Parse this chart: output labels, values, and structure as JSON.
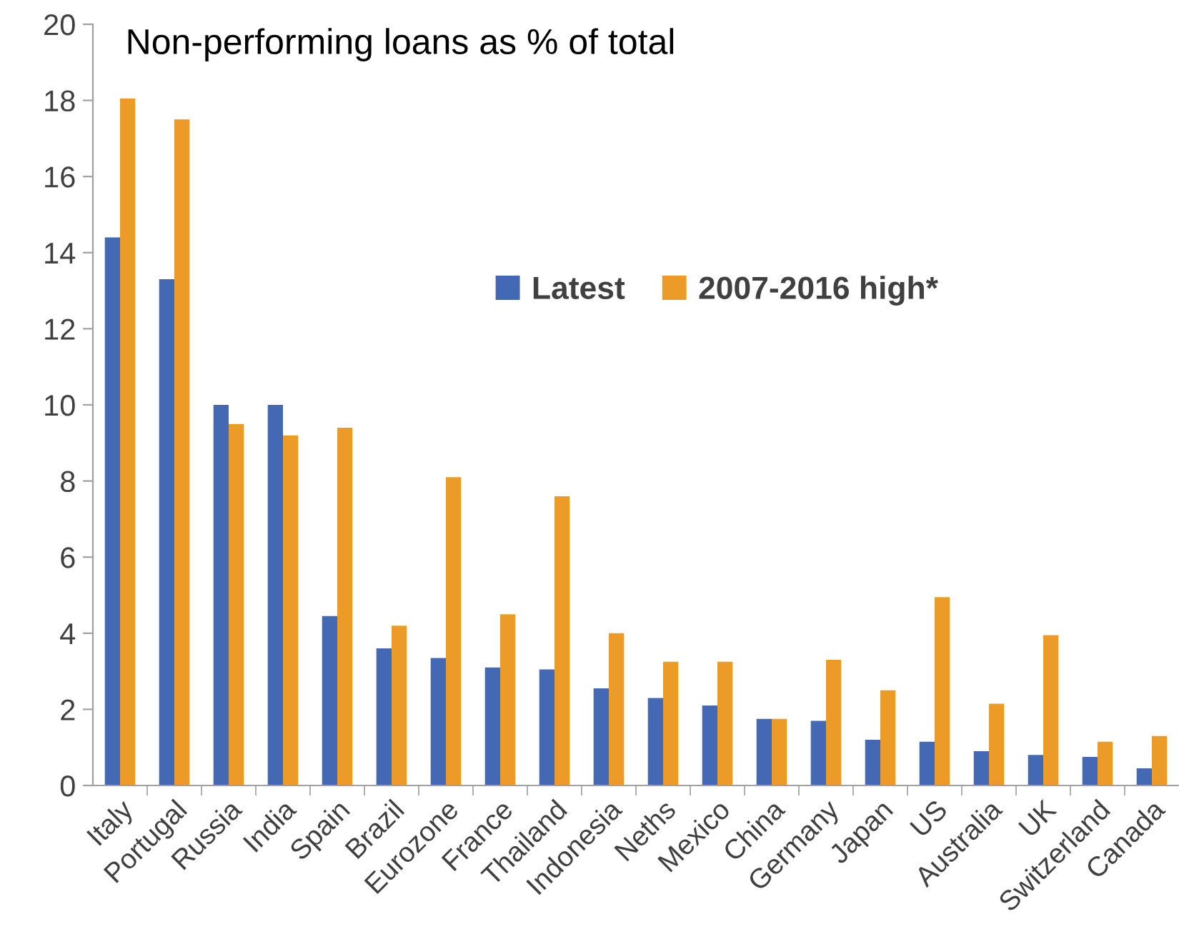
{
  "chart_data": {
    "type": "bar",
    "title": "Non-performing loans as % of total",
    "categories": [
      "Italy",
      "Portugal",
      "Russia",
      "India",
      "Spain",
      "Brazil",
      "Eurozone",
      "France",
      "Thailand",
      "Indonesia",
      "Neths",
      "Mexico",
      "China",
      "Germany",
      "Japan",
      "US",
      "Australia",
      "UK",
      "Switzerland",
      "Canada"
    ],
    "series": [
      {
        "name": "Latest",
        "color": "#4469b4",
        "values": [
          14.4,
          13.3,
          10.0,
          10.0,
          4.45,
          3.6,
          3.35,
          3.1,
          3.05,
          2.55,
          2.3,
          2.1,
          1.75,
          1.7,
          1.2,
          1.15,
          0.9,
          0.8,
          0.75,
          0.45
        ]
      },
      {
        "name": "2007-2016 high*",
        "color": "#ed9b28",
        "values": [
          18.05,
          17.5,
          9.5,
          9.2,
          9.4,
          4.2,
          8.1,
          4.5,
          7.6,
          4.0,
          3.25,
          3.25,
          1.75,
          3.3,
          2.5,
          4.95,
          2.15,
          3.95,
          1.15,
          1.3
        ]
      }
    ],
    "ylim": [
      0,
      20
    ],
    "yticks": [
      0,
      2,
      4,
      6,
      8,
      10,
      12,
      14,
      16,
      18,
      20
    ],
    "grid": false,
    "legend": "center"
  }
}
